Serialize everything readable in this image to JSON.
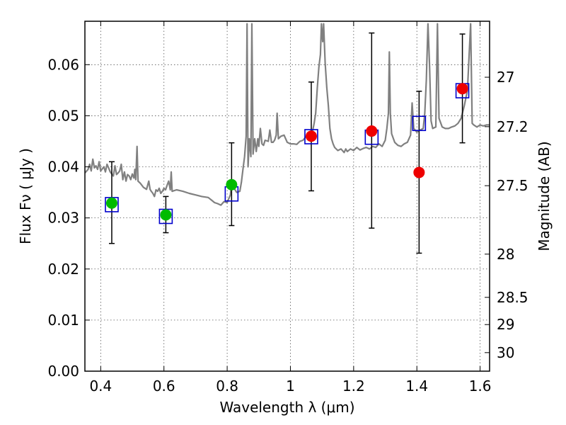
{
  "chart_data": {
    "type": "scatter",
    "xlabel": "Wavelength  λ (μm)",
    "ylabel": "Flux  Fν  ( μJy )",
    "ylabel_right": "Magnitude (AB)",
    "xlim": [
      0.35,
      1.63
    ],
    "ylim": [
      0.0,
      0.0685
    ],
    "x_ticks": [
      0.4,
      0.6,
      0.8,
      1.0,
      1.2,
      1.4,
      1.6
    ],
    "x_tick_labels": [
      "0.4",
      "0.6",
      "0.8",
      "1",
      "1.2",
      "1.4",
      "1.6"
    ],
    "y_ticks": [
      0.0,
      0.01,
      0.02,
      0.03,
      0.04,
      0.05,
      0.06
    ],
    "y_tick_labels": [
      "0.00",
      "0.01",
      "0.02",
      "0.03",
      "0.04",
      "0.05",
      "0.06"
    ],
    "right_ticks": [
      {
        "label": "27",
        "flux": 0.05754
      },
      {
        "label": "27.2",
        "flux": 0.04786
      },
      {
        "label": "27.5",
        "flux": 0.03631
      },
      {
        "label": "28",
        "flux": 0.02291
      },
      {
        "label": "28.5",
        "flux": 0.01445
      },
      {
        "label": "29",
        "flux": 0.00912
      },
      {
        "label": "30",
        "flux": 0.00363
      }
    ],
    "grid": true,
    "colors": {
      "sed": "#808080",
      "model": "#0000cc",
      "green": "#00bb00",
      "red": "#ee0000",
      "errorbar": "#000000"
    },
    "sed": [
      [
        0.35,
        0.0388
      ],
      [
        0.36,
        0.0395
      ],
      [
        0.365,
        0.0405
      ],
      [
        0.37,
        0.0392
      ],
      [
        0.375,
        0.0415
      ],
      [
        0.38,
        0.0398
      ],
      [
        0.385,
        0.0402
      ],
      [
        0.39,
        0.0395
      ],
      [
        0.395,
        0.041
      ],
      [
        0.4,
        0.0392
      ],
      [
        0.41,
        0.04
      ],
      [
        0.415,
        0.039
      ],
      [
        0.42,
        0.0405
      ],
      [
        0.425,
        0.0398
      ],
      [
        0.43,
        0.039
      ],
      [
        0.44,
        0.0382
      ],
      [
        0.445,
        0.0402
      ],
      [
        0.45,
        0.0385
      ],
      [
        0.455,
        0.0388
      ],
      [
        0.46,
        0.0392
      ],
      [
        0.465,
        0.0405
      ],
      [
        0.47,
        0.0375
      ],
      [
        0.475,
        0.039
      ],
      [
        0.48,
        0.0372
      ],
      [
        0.485,
        0.0385
      ],
      [
        0.49,
        0.0382
      ],
      [
        0.495,
        0.0375
      ],
      [
        0.5,
        0.0386
      ],
      [
        0.505,
        0.0378
      ],
      [
        0.508,
        0.0395
      ],
      [
        0.511,
        0.0375
      ],
      [
        0.515,
        0.044
      ],
      [
        0.518,
        0.0372
      ],
      [
        0.525,
        0.0368
      ],
      [
        0.535,
        0.036
      ],
      [
        0.545,
        0.0356
      ],
      [
        0.552,
        0.0372
      ],
      [
        0.556,
        0.0356
      ],
      [
        0.56,
        0.0352
      ],
      [
        0.565,
        0.0348
      ],
      [
        0.57,
        0.0342
      ],
      [
        0.575,
        0.0355
      ],
      [
        0.58,
        0.0352
      ],
      [
        0.585,
        0.0358
      ],
      [
        0.59,
        0.0348
      ],
      [
        0.595,
        0.0352
      ],
      [
        0.6,
        0.0358
      ],
      [
        0.605,
        0.0355
      ],
      [
        0.61,
        0.0364
      ],
      [
        0.615,
        0.0372
      ],
      [
        0.62,
        0.0355
      ],
      [
        0.623,
        0.039
      ],
      [
        0.626,
        0.0352
      ],
      [
        0.64,
        0.0355
      ],
      [
        0.66,
        0.0352
      ],
      [
        0.68,
        0.0348
      ],
      [
        0.7,
        0.0345
      ],
      [
        0.72,
        0.0342
      ],
      [
        0.74,
        0.034
      ],
      [
        0.75,
        0.0335
      ],
      [
        0.76,
        0.033
      ],
      [
        0.77,
        0.0328
      ],
      [
        0.78,
        0.0325
      ],
      [
        0.79,
        0.0332
      ],
      [
        0.8,
        0.033
      ],
      [
        0.81,
        0.0345
      ],
      [
        0.815,
        0.0372
      ],
      [
        0.82,
        0.036
      ],
      [
        0.83,
        0.035
      ],
      [
        0.84,
        0.0352
      ],
      [
        0.845,
        0.037
      ],
      [
        0.85,
        0.0395
      ],
      [
        0.855,
        0.042
      ],
      [
        0.86,
        0.046
      ],
      [
        0.863,
        0.068
      ],
      [
        0.866,
        0.04
      ],
      [
        0.87,
        0.0455
      ],
      [
        0.875,
        0.042
      ],
      [
        0.878,
        0.068
      ],
      [
        0.882,
        0.0425
      ],
      [
        0.887,
        0.0455
      ],
      [
        0.892,
        0.043
      ],
      [
        0.897,
        0.0455
      ],
      [
        0.9,
        0.044
      ],
      [
        0.905,
        0.0475
      ],
      [
        0.91,
        0.0445
      ],
      [
        0.915,
        0.0442
      ],
      [
        0.92,
        0.0452
      ],
      [
        0.93,
        0.045
      ],
      [
        0.935,
        0.0472
      ],
      [
        0.94,
        0.0448
      ],
      [
        0.945,
        0.0448
      ],
      [
        0.95,
        0.0452
      ],
      [
        0.955,
        0.0462
      ],
      [
        0.958,
        0.0505
      ],
      [
        0.962,
        0.0455
      ],
      [
        0.97,
        0.046
      ],
      [
        0.98,
        0.0462
      ],
      [
        0.99,
        0.0448
      ],
      [
        1.0,
        0.0445
      ],
      [
        1.01,
        0.0445
      ],
      [
        1.02,
        0.0444
      ],
      [
        1.03,
        0.045
      ],
      [
        1.04,
        0.0452
      ],
      [
        1.05,
        0.046
      ],
      [
        1.06,
        0.0468
      ],
      [
        1.07,
        0.047
      ],
      [
        1.075,
        0.0485
      ],
      [
        1.08,
        0.0505
      ],
      [
        1.085,
        0.0555
      ],
      [
        1.09,
        0.0595
      ],
      [
        1.095,
        0.062
      ],
      [
        1.098,
        0.068
      ],
      [
        1.102,
        0.0645
      ],
      [
        1.105,
        0.068
      ],
      [
        1.11,
        0.0603
      ],
      [
        1.115,
        0.0555
      ],
      [
        1.12,
        0.052
      ],
      [
        1.125,
        0.0475
      ],
      [
        1.13,
        0.0455
      ],
      [
        1.135,
        0.0445
      ],
      [
        1.14,
        0.0438
      ],
      [
        1.15,
        0.0432
      ],
      [
        1.16,
        0.0435
      ],
      [
        1.17,
        0.0428
      ],
      [
        1.175,
        0.0435
      ],
      [
        1.18,
        0.043
      ],
      [
        1.19,
        0.0435
      ],
      [
        1.2,
        0.0432
      ],
      [
        1.21,
        0.0438
      ],
      [
        1.22,
        0.0433
      ],
      [
        1.23,
        0.0436
      ],
      [
        1.24,
        0.0438
      ],
      [
        1.25,
        0.0435
      ],
      [
        1.26,
        0.044
      ],
      [
        1.27,
        0.0438
      ],
      [
        1.28,
        0.0445
      ],
      [
        1.29,
        0.044
      ],
      [
        1.3,
        0.0452
      ],
      [
        1.305,
        0.0475
      ],
      [
        1.31,
        0.0505
      ],
      [
        1.313,
        0.0625
      ],
      [
        1.316,
        0.0505
      ],
      [
        1.32,
        0.0465
      ],
      [
        1.33,
        0.0448
      ],
      [
        1.34,
        0.0442
      ],
      [
        1.35,
        0.044
      ],
      [
        1.36,
        0.0445
      ],
      [
        1.37,
        0.0448
      ],
      [
        1.38,
        0.0462
      ],
      [
        1.385,
        0.0525
      ],
      [
        1.39,
        0.0475
      ],
      [
        1.4,
        0.0468
      ],
      [
        1.41,
        0.0472
      ],
      [
        1.42,
        0.0475
      ],
      [
        1.425,
        0.0505
      ],
      [
        1.43,
        0.057
      ],
      [
        1.435,
        0.068
      ],
      [
        1.44,
        0.06
      ],
      [
        1.445,
        0.049
      ],
      [
        1.45,
        0.0475
      ],
      [
        1.46,
        0.0478
      ],
      [
        1.465,
        0.068
      ],
      [
        1.47,
        0.0495
      ],
      [
        1.48,
        0.0478
      ],
      [
        1.49,
        0.0475
      ],
      [
        1.5,
        0.0475
      ],
      [
        1.51,
        0.0478
      ],
      [
        1.52,
        0.048
      ],
      [
        1.53,
        0.0485
      ],
      [
        1.54,
        0.0495
      ],
      [
        1.55,
        0.052
      ],
      [
        1.56,
        0.055
      ],
      [
        1.57,
        0.068
      ],
      [
        1.575,
        0.0485
      ],
      [
        1.58,
        0.0482
      ],
      [
        1.59,
        0.0478
      ],
      [
        1.6,
        0.0482
      ],
      [
        1.61,
        0.048
      ],
      [
        1.62,
        0.0482
      ],
      [
        1.63,
        0.0482
      ]
    ],
    "model_fluxes": [
      {
        "x": 0.435,
        "y": 0.0326
      },
      {
        "x": 0.606,
        "y": 0.0303
      },
      {
        "x": 0.814,
        "y": 0.0347
      },
      {
        "x": 1.066,
        "y": 0.0459
      },
      {
        "x": 1.257,
        "y": 0.0458
      },
      {
        "x": 1.407,
        "y": 0.0485
      },
      {
        "x": 1.544,
        "y": 0.0549
      }
    ],
    "observed": [
      {
        "x": 0.435,
        "y": 0.0329,
        "err_low": 0.025,
        "err_high": 0.041,
        "color": "green"
      },
      {
        "x": 0.606,
        "y": 0.0306,
        "err_low": 0.0271,
        "err_high": 0.0342,
        "color": "green"
      },
      {
        "x": 0.814,
        "y": 0.0365,
        "err_low": 0.0285,
        "err_high": 0.0447,
        "color": "green"
      },
      {
        "x": 1.066,
        "y": 0.046,
        "err_low": 0.0353,
        "err_high": 0.0566,
        "color": "red"
      },
      {
        "x": 1.257,
        "y": 0.047,
        "err_low": 0.028,
        "err_high": 0.0662,
        "color": "red"
      },
      {
        "x": 1.407,
        "y": 0.0389,
        "err_low": 0.0231,
        "err_high": 0.0548,
        "color": "red"
      },
      {
        "x": 1.544,
        "y": 0.0553,
        "err_low": 0.0447,
        "err_high": 0.066,
        "color": "red"
      }
    ]
  }
}
